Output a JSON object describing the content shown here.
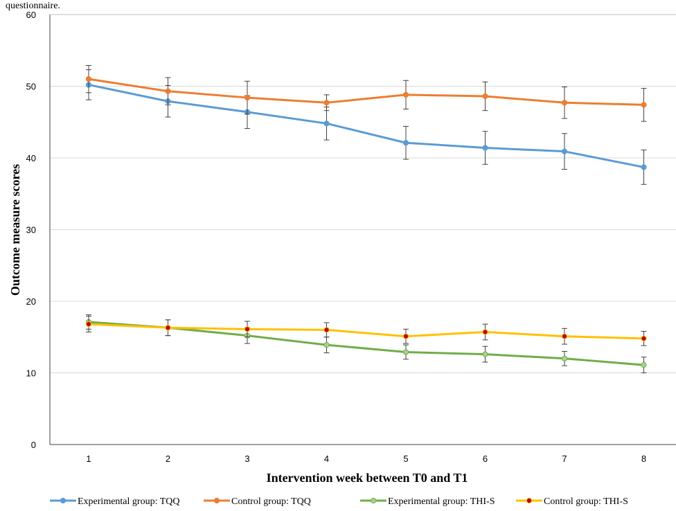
{
  "caption_fragment": "questionnaire.",
  "chart_data": {
    "type": "line",
    "xlabel": "Intervention week between T0 and T1",
    "ylabel": "Outcome measure scores",
    "categories": [
      "1",
      "2",
      "3",
      "4",
      "5",
      "6",
      "7",
      "8"
    ],
    "ylim": [
      0,
      60
    ],
    "yticks": [
      0,
      10,
      20,
      30,
      40,
      50,
      60
    ],
    "grid": true,
    "legend_position": "bottom",
    "series": [
      {
        "name": "Experimental group: TQQ",
        "color": "#5b9bd5",
        "marker_fill": "#5b9bd5",
        "values": [
          50.2,
          47.9,
          46.4,
          44.8,
          42.1,
          41.4,
          40.9,
          38.7
        ],
        "errors": [
          2.1,
          2.2,
          2.3,
          2.3,
          2.3,
          2.3,
          2.5,
          2.4
        ]
      },
      {
        "name": "Control group: TQQ",
        "color": "#ed7d31",
        "marker_fill": "#ed7d31",
        "values": [
          51.0,
          49.3,
          48.4,
          47.7,
          48.8,
          48.6,
          47.7,
          47.4
        ],
        "errors": [
          1.9,
          1.9,
          2.3,
          1.1,
          2.0,
          2.0,
          2.2,
          2.3
        ]
      },
      {
        "name": "Experimental group: THI-S",
        "color": "#70ad47",
        "marker_fill": "#a9d18e",
        "values": [
          17.1,
          16.3,
          15.2,
          13.9,
          12.9,
          12.6,
          12.0,
          11.1
        ],
        "errors": [
          1.0,
          1.1,
          1.1,
          1.1,
          1.0,
          1.1,
          1.0,
          1.1
        ]
      },
      {
        "name": "Control group: THI-S",
        "color": "#ffc000",
        "marker_fill": "#c00000",
        "values": [
          16.8,
          16.3,
          16.1,
          16.0,
          15.1,
          15.7,
          15.1,
          14.8
        ],
        "errors": [
          1.1,
          1.1,
          1.1,
          1.0,
          1.0,
          1.1,
          1.1,
          1.0
        ]
      }
    ]
  }
}
